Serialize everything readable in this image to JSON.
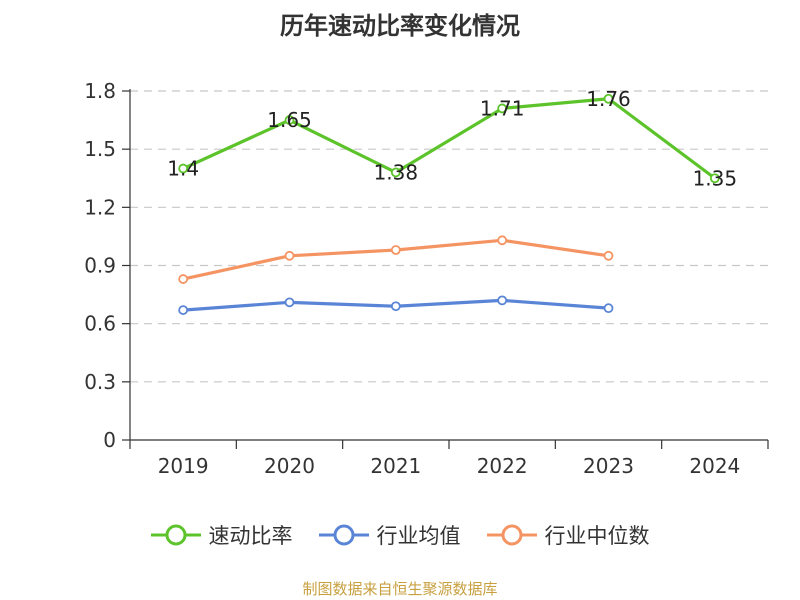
{
  "chart_data": {
    "type": "line",
    "title": "历年速动比率变化情况",
    "categories": [
      "2019",
      "2020",
      "2021",
      "2022",
      "2023",
      "2024"
    ],
    "ylim": [
      0,
      1.8
    ],
    "yticks": [
      "0",
      "0.3",
      "0.6",
      "0.9",
      "1.2",
      "1.5",
      "1.8"
    ],
    "grid": true,
    "legend_position": "bottom",
    "series": [
      {
        "name": "速动比率",
        "color": "#5cc42a",
        "values": [
          1.4,
          1.65,
          1.38,
          1.71,
          1.76,
          1.35
        ],
        "labels": [
          "1.4",
          "1.65",
          "1.38",
          "1.71",
          "1.76",
          "1.35"
        ]
      },
      {
        "name": "行业均值",
        "color": "#5a85d6",
        "values": [
          0.67,
          0.71,
          0.69,
          0.72,
          0.68,
          null
        ]
      },
      {
        "name": "行业中位数",
        "color": "#f59463",
        "values": [
          0.83,
          0.95,
          0.98,
          1.03,
          0.95,
          null
        ]
      }
    ]
  },
  "footer": {
    "source": "制图数据来自恒生聚源数据库"
  }
}
